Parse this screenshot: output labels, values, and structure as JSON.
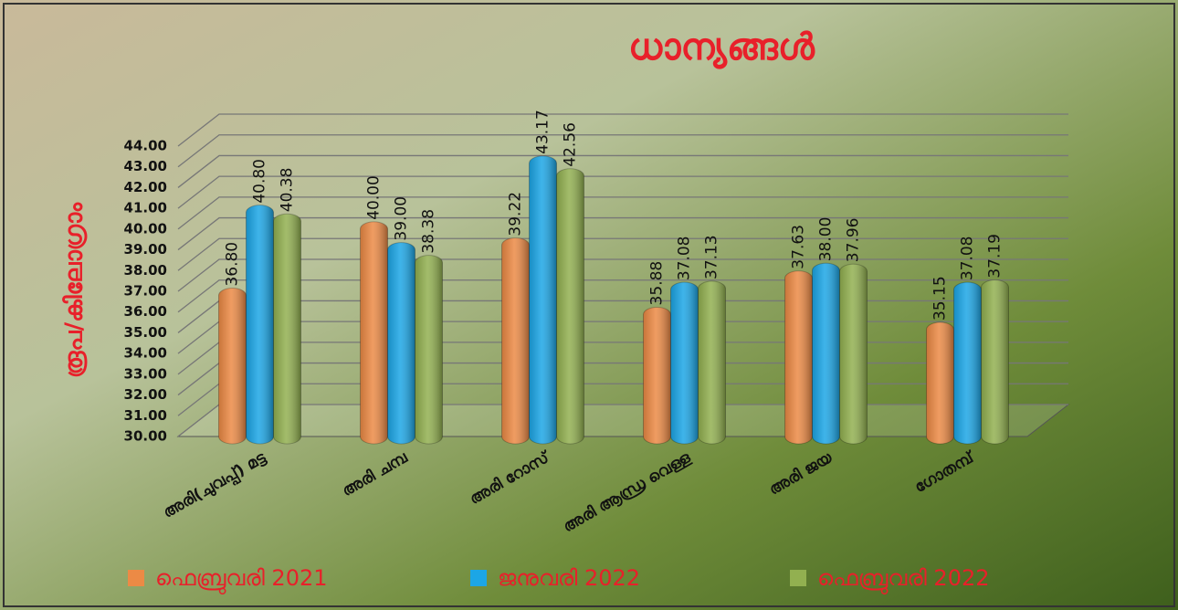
{
  "chart_data": {
    "type": "bar3d",
    "title": "ധാന്യങ്ങൾ",
    "y_label": "രൂപ/കിലോഗ്രാം",
    "categories": [
      "അരി(ചുവപ്പ്) മട്ട",
      "അരി ചമ്പ",
      "അരി റോസ്",
      "അരി ആന്ധ്ര വെള്ള",
      "അരി ജയ",
      "ഗോതമ്പ്"
    ],
    "series": [
      {
        "name": "ഫെബ്രുവരി 2021",
        "color": "#ec8a45",
        "values": [
          36.8,
          40,
          39.22,
          35.88,
          37.63,
          35.15
        ],
        "value_labels": [
          "36.80",
          "40.00",
          "39.22",
          "35.88",
          "37.63",
          "35.15"
        ]
      },
      {
        "name": "ജനുവരി 2022",
        "color": "#1ca6e6",
        "values": [
          40.8,
          39,
          43.17,
          37.08,
          38,
          37.08
        ],
        "value_labels": [
          "40.80",
          "39.00",
          "43.17",
          "37.08",
          "38.00",
          "37.08"
        ]
      },
      {
        "name": "ഫെബ്രുവരി 2022",
        "color": "#92b050",
        "values": [
          40.38,
          38.38,
          42.56,
          37.13,
          37.96,
          37.19
        ],
        "value_labels": [
          "40.38",
          "38.38",
          "42.56",
          "37.13",
          "37.96",
          "37.19"
        ]
      }
    ],
    "ylim": [
      30,
      44
    ],
    "yticks": [
      {
        "value": 30,
        "label": "30.00"
      },
      {
        "value": 31,
        "label": "31.00"
      },
      {
        "value": 32,
        "label": "32.00"
      },
      {
        "value": 33,
        "label": "33.00"
      },
      {
        "value": 34,
        "label": "34.00"
      },
      {
        "value": 35,
        "label": "35.00"
      },
      {
        "value": 36,
        "label": "36.00"
      },
      {
        "value": 37,
        "label": "37.00"
      },
      {
        "value": 38,
        "label": "38.00"
      },
      {
        "value": 39,
        "label": "39.00"
      },
      {
        "value": 40,
        "label": "40.00"
      },
      {
        "value": 41,
        "label": "41.00"
      },
      {
        "value": 42,
        "label": "42.00"
      },
      {
        "value": 43,
        "label": "43.00"
      },
      {
        "value": 44,
        "label": "44.00"
      }
    ],
    "grid": true
  }
}
